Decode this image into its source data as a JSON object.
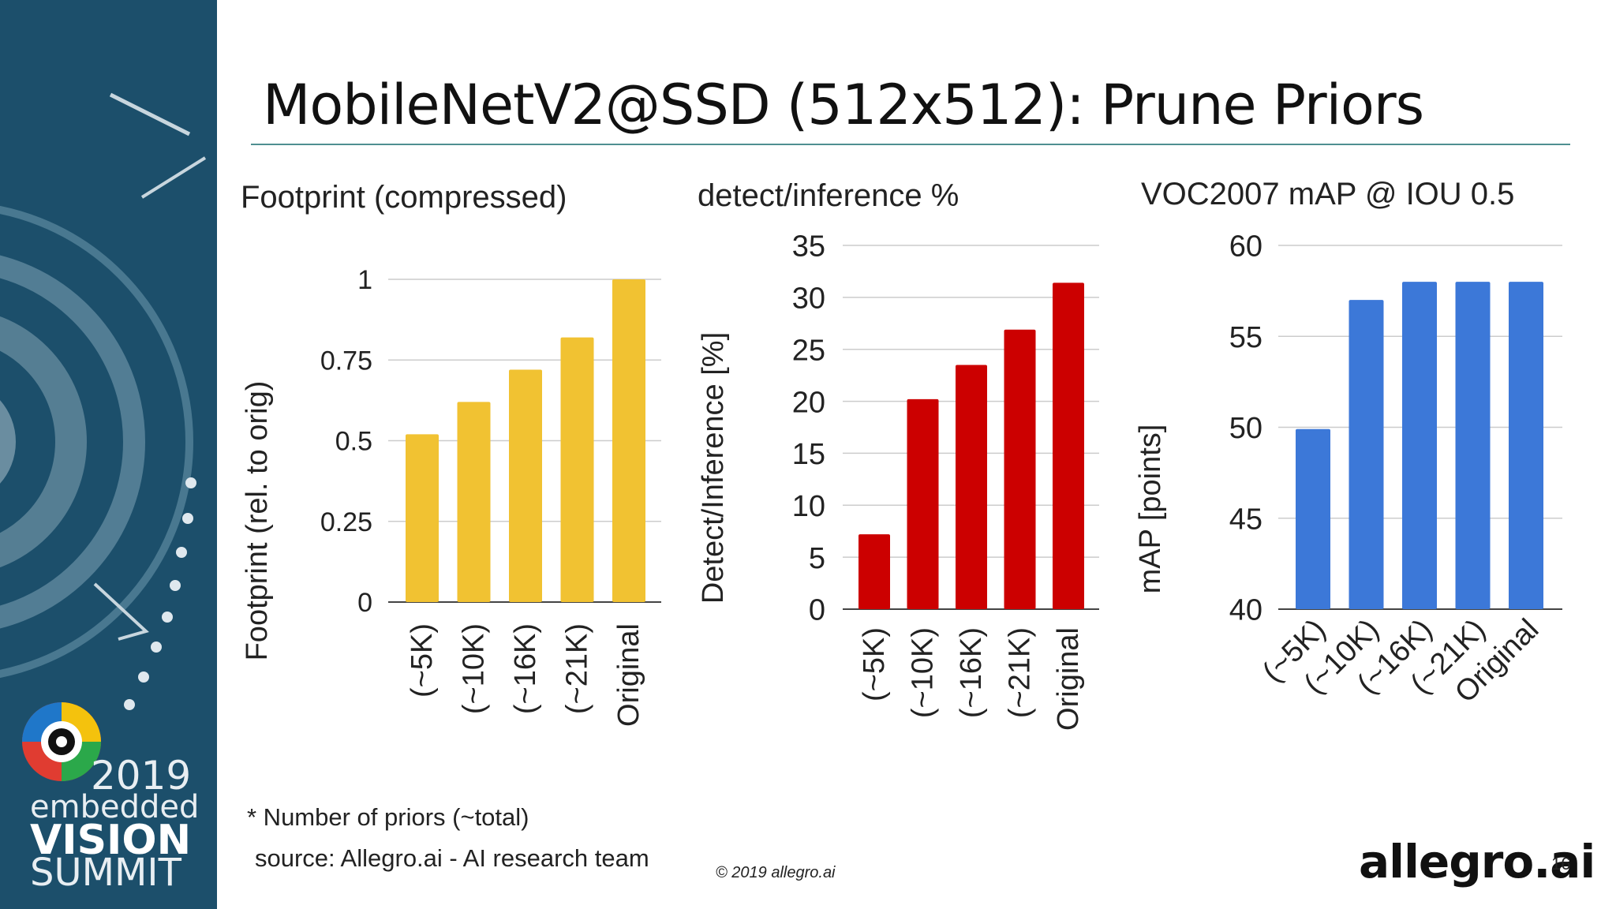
{
  "slide": {
    "title": "MobileNetV2@SSD (512x512): Prune Priors",
    "footnote": "* Number of priors (~total)",
    "source": "source: Allegro.ai - AI research team",
    "copyright": "© 2019 allegro.ai",
    "brand": "allegro.ai",
    "page_number": "16"
  },
  "sidebar": {
    "year": "2019",
    "line1": "embedded",
    "line2": "VISION",
    "line3": "SUMMIT",
    "background_color": "#1c4f6b"
  },
  "chart_data": [
    {
      "type": "bar",
      "title": "Footprint (compressed)",
      "ylabel": "Footprint (rel. to orig)",
      "xlabel": "",
      "categories": [
        "(~5K)",
        "(~10K)",
        "(~16K)",
        "(~21K)",
        "Original"
      ],
      "values": [
        0.52,
        0.62,
        0.72,
        0.82,
        1.0
      ],
      "ylim": [
        0,
        1
      ],
      "yticks": [
        "0",
        "0.25",
        "0.5",
        "0.75",
        "1"
      ],
      "grid": true,
      "color": "#f1c232"
    },
    {
      "type": "bar",
      "title": "detect/inference %",
      "ylabel": "Detect/Inference [%]",
      "xlabel": "",
      "categories": [
        "(~5K)",
        "(~10K)",
        "(~16K)",
        "(~21K)",
        "Original"
      ],
      "values": [
        7.2,
        20.2,
        23.5,
        26.9,
        31.4
      ],
      "ylim": [
        0,
        35
      ],
      "yticks": [
        "0",
        "5",
        "10",
        "15",
        "20",
        "25",
        "30",
        "35"
      ],
      "grid": true,
      "color": "#cc0000"
    },
    {
      "type": "bar",
      "title": "VOC2007 mAP @ IOU 0.5",
      "ylabel": "mAP [points]",
      "xlabel": "",
      "categories": [
        "(~5K)",
        "(~10K)",
        "(~16K)",
        "(~21K)",
        "Original"
      ],
      "values": [
        49.9,
        57.0,
        58.0,
        58.0,
        58.0
      ],
      "ylim": [
        40,
        60
      ],
      "yticks": [
        "40",
        "45",
        "50",
        "55",
        "60"
      ],
      "grid": true,
      "color": "#3c78d8"
    }
  ]
}
